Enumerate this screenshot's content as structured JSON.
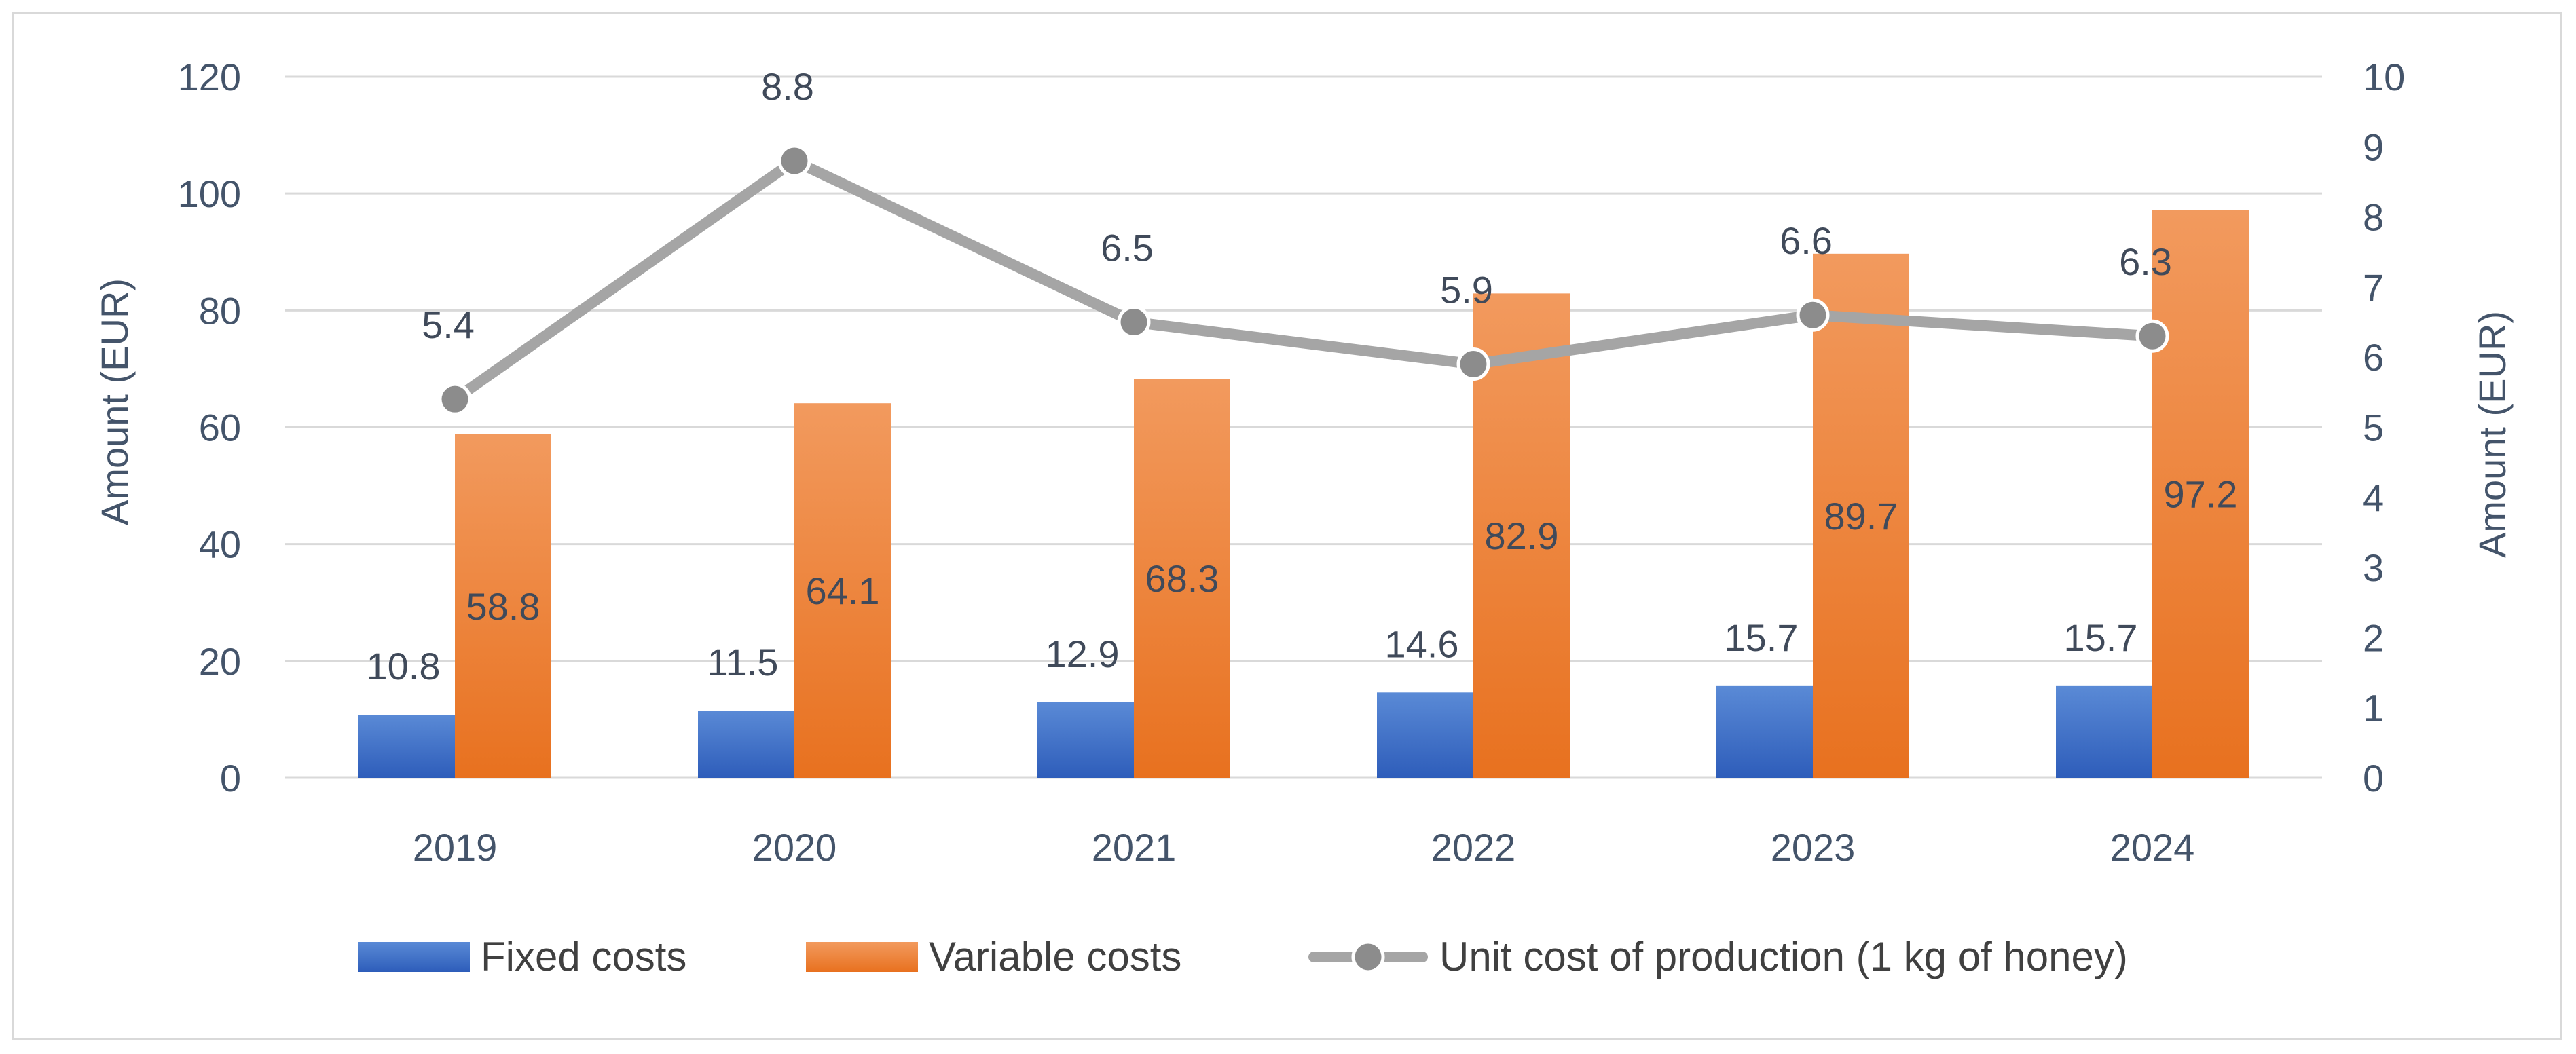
{
  "chart_data": {
    "type": "bar",
    "categories": [
      "2019",
      "2020",
      "2021",
      "2022",
      "2023",
      "2024"
    ],
    "series": [
      {
        "name": "Fixed costs",
        "type": "bar",
        "axis": "left",
        "values": [
          10.8,
          11.5,
          12.9,
          14.6,
          15.7,
          15.7
        ],
        "color": "#4472c4"
      },
      {
        "name": "Variable costs",
        "type": "bar",
        "axis": "left",
        "values": [
          58.8,
          64.1,
          68.3,
          82.9,
          89.7,
          97.2
        ],
        "color": "#ed7d31"
      },
      {
        "name": "Unit cost of production (1 kg of honey)",
        "type": "line",
        "axis": "right",
        "values": [
          5.4,
          8.8,
          6.5,
          5.9,
          6.6,
          6.3
        ],
        "color": "#a5a5a5"
      }
    ],
    "ylabel_left": "Amount (EUR)",
    "ylabel_right": "Amount (EUR)",
    "ylim_left": [
      0,
      120
    ],
    "yticks_left": [
      0,
      20,
      40,
      60,
      80,
      100,
      120
    ],
    "ylim_right": [
      0,
      10
    ],
    "yticks_right": [
      0,
      1,
      2,
      3,
      4,
      5,
      6,
      7,
      8,
      9,
      10
    ],
    "grid": true,
    "legend_position": "bottom"
  }
}
